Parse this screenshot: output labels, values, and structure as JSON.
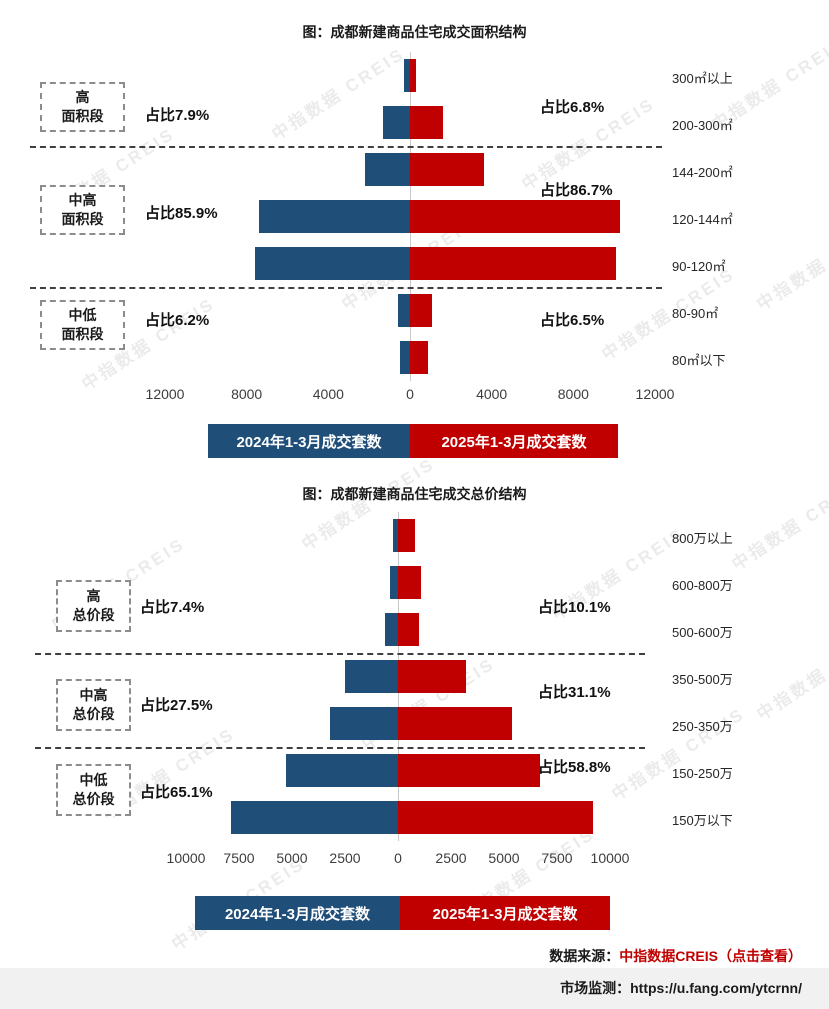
{
  "watermark": "中指数据 CREIS",
  "colors": {
    "blue": "#1f4e79",
    "red": "#c00000"
  },
  "chart_data": [
    {
      "type": "bar",
      "orientation": "tornado",
      "title": "图：成都新建商品住宅成交面积结构",
      "categories": [
        "300㎡以上",
        "200-300㎡",
        "144-200㎡",
        "120-144㎡",
        "90-120㎡",
        "80-90㎡",
        "80㎡以下"
      ],
      "series": [
        {
          "name": "2024年1-3月成交套数",
          "color": "#1f4e79",
          "side": "left",
          "values": [
            300,
            1300,
            2200,
            7400,
            7600,
            600,
            500
          ]
        },
        {
          "name": "2025年1-3月成交套数",
          "color": "#c00000",
          "side": "right",
          "values": [
            300,
            1600,
            3600,
            10300,
            10100,
            1100,
            900
          ]
        }
      ],
      "axis_max": 12000,
      "axis_ticks": [
        "12000",
        "8000",
        "4000",
        "0",
        "4000",
        "8000",
        "12000"
      ],
      "grid": "center-line-only",
      "legend_position": "bottom",
      "groups": [
        {
          "label": "高\n面积段",
          "rows": [
            0,
            1
          ],
          "left_pct": "占比7.9%",
          "right_pct": "占比6.8%"
        },
        {
          "label": "中高\n面积段",
          "rows": [
            2,
            4
          ],
          "left_pct": "占比85.9%",
          "right_pct": "占比86.7%"
        },
        {
          "label": "中低\n面积段",
          "rows": [
            5,
            6
          ],
          "left_pct": "占比6.2%",
          "right_pct": "占比6.5%"
        }
      ]
    },
    {
      "type": "bar",
      "orientation": "tornado",
      "title": "图：成都新建商品住宅成交总价结构",
      "categories": [
        "800万以上",
        "600-800万",
        "500-600万",
        "350-500万",
        "250-350万",
        "150-250万",
        "150万以下"
      ],
      "series": [
        {
          "name": "2024年1-3月成交套数",
          "color": "#1f4e79",
          "side": "left",
          "values": [
            250,
            400,
            600,
            2500,
            3200,
            5300,
            7900
          ]
        },
        {
          "name": "2025年1-3月成交套数",
          "color": "#c00000",
          "side": "right",
          "values": [
            800,
            1100,
            1000,
            3200,
            5400,
            6700,
            9200
          ]
        }
      ],
      "axis_max": 10000,
      "axis_ticks": [
        "10000",
        "7500",
        "5000",
        "2500",
        "0",
        "2500",
        "5000",
        "7500",
        "10000"
      ],
      "grid": "center-line-only",
      "legend_position": "bottom",
      "groups": [
        {
          "label": "高\n总价段",
          "rows": [
            0,
            2
          ],
          "left_pct": "占比7.4%",
          "right_pct": "占比10.1%"
        },
        {
          "label": "中高\n总价段",
          "rows": [
            3,
            4
          ],
          "left_pct": "占比27.5%",
          "right_pct": "占比31.1%"
        },
        {
          "label": "中低\n总价段",
          "rows": [
            5,
            6
          ],
          "left_pct": "占比65.1%",
          "right_pct": "占比58.8%"
        }
      ]
    }
  ],
  "footer": {
    "source_label": "数据来源：",
    "source_link": "中指数据CREIS（点击查看）",
    "monitor_label": "市场监测：",
    "monitor_url": "https://u.fang.com/ytcrnn/"
  }
}
